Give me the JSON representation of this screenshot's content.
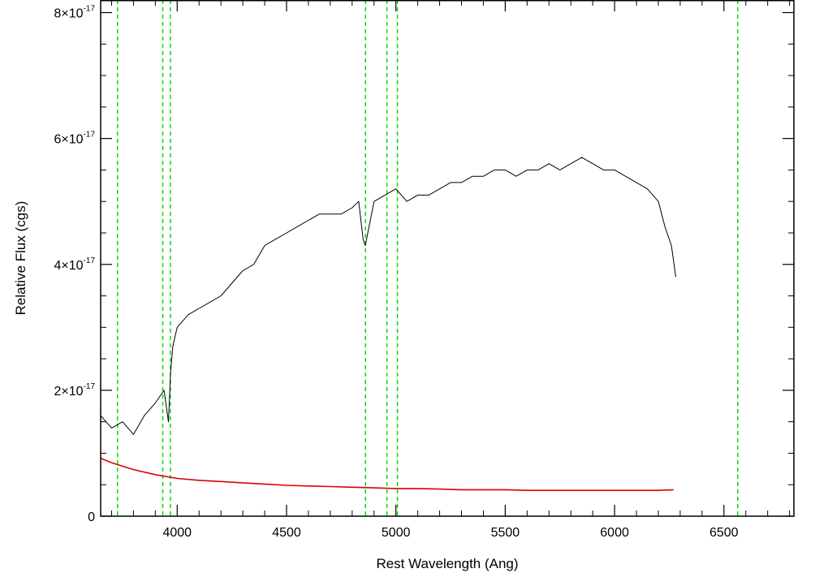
{
  "chart_data": {
    "type": "line",
    "title": "",
    "xlabel": "Rest Wavelength (Ang)",
    "ylabel": "Relative Flux (cgs)",
    "xlim": [
      3650,
      6820
    ],
    "ylim": [
      0,
      8.2e-17
    ],
    "x_ticks": [
      {
        "value": 4000,
        "label": "4000"
      },
      {
        "value": 4500,
        "label": "4500"
      },
      {
        "value": 5000,
        "label": "5000"
      },
      {
        "value": 5500,
        "label": "5500"
      },
      {
        "value": 6000,
        "label": "6000"
      },
      {
        "value": 6500,
        "label": "6500"
      }
    ],
    "y_ticks": [
      {
        "value": 0,
        "mantissa": "0",
        "exponent": ""
      },
      {
        "value": 2e-17,
        "mantissa": "2×10",
        "exponent": "-17"
      },
      {
        "value": 4e-17,
        "mantissa": "4×10",
        "exponent": "-17"
      },
      {
        "value": 6e-17,
        "mantissa": "6×10",
        "exponent": "-17"
      },
      {
        "value": 8e-17,
        "mantissa": "8×10",
        "exponent": "-17"
      }
    ],
    "grid": false,
    "reference_lines": {
      "color": "#00dd00",
      "style": "dashed",
      "x": [
        3727,
        3934,
        3969,
        4861,
        4959,
        5007,
        6563
      ]
    },
    "series": [
      {
        "color": "#000000",
        "x": [
          3650,
          3700,
          3750,
          3800,
          3850,
          3900,
          3940,
          3960,
          3970,
          3980,
          4000,
          4050,
          4100,
          4150,
          4200,
          4250,
          4300,
          4350,
          4400,
          4450,
          4500,
          4550,
          4600,
          4650,
          4700,
          4750,
          4800,
          4830,
          4850,
          4860,
          4900,
          4950,
          5000,
          5050,
          5100,
          5150,
          5200,
          5250,
          5300,
          5350,
          5400,
          5450,
          5500,
          5550,
          5600,
          5650,
          5700,
          5750,
          5800,
          5850,
          5900,
          5950,
          6000,
          6050,
          6100,
          6150,
          6200,
          6230,
          6260,
          6280
        ],
        "values": [
          1.6e-17,
          1.4e-17,
          1.5e-17,
          1.3e-17,
          1.6e-17,
          1.8e-17,
          2e-17,
          1.5e-17,
          2.3e-17,
          2.7e-17,
          3e-17,
          3.2e-17,
          3.3e-17,
          3.4e-17,
          3.5e-17,
          3.7e-17,
          3.9e-17,
          4e-17,
          4.3e-17,
          4.4e-17,
          4.5e-17,
          4.6e-17,
          4.7e-17,
          4.8e-17,
          4.8e-17,
          4.8e-17,
          4.9e-17,
          5e-17,
          4.4e-17,
          4.3e-17,
          5e-17,
          5.1e-17,
          5.2e-17,
          5e-17,
          5.1e-17,
          5.1e-17,
          5.2e-17,
          5.3e-17,
          5.3e-17,
          5.4e-17,
          5.4e-17,
          5.5e-17,
          5.5e-17,
          5.4e-17,
          5.5e-17,
          5.5e-17,
          5.6e-17,
          5.5e-17,
          5.6e-17,
          5.7e-17,
          5.6e-17,
          5.5e-17,
          5.5e-17,
          5.4e-17,
          5.3e-17,
          5.2e-17,
          5e-17,
          4.6e-17,
          4.3e-17,
          3.8e-17
        ]
      },
      {
        "color": "#dd0000",
        "x": [
          3650,
          3700,
          3800,
          3900,
          4000,
          4100,
          4200,
          4300,
          4400,
          4500,
          4600,
          4700,
          4800,
          4900,
          5000,
          5100,
          5200,
          5300,
          5400,
          5500,
          5600,
          5700,
          5800,
          5900,
          6000,
          6100,
          6200,
          6270
        ],
        "values": [
          9.2e-18,
          8.5e-18,
          7.4e-18,
          6.6e-18,
          6e-18,
          5.7e-18,
          5.5e-18,
          5.3e-18,
          5.1e-18,
          4.9e-18,
          4.8e-18,
          4.7e-18,
          4.6e-18,
          4.5e-18,
          4.4e-18,
          4.4e-18,
          4.3e-18,
          4.2e-18,
          4.2e-18,
          4.2e-18,
          4.1e-18,
          4.1e-18,
          4.1e-18,
          4.1e-18,
          4.1e-18,
          4.1e-18,
          4.1e-18,
          4.2e-18
        ]
      }
    ]
  }
}
